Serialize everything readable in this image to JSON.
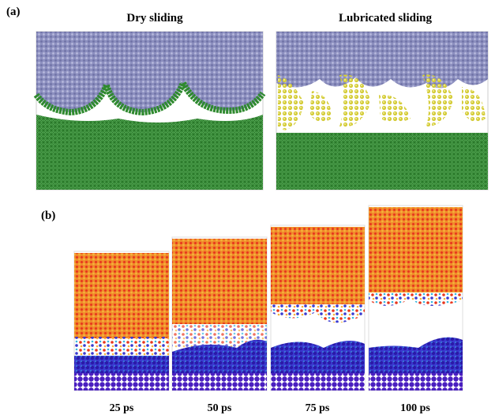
{
  "panel_a": {
    "label": "(a)",
    "titles": [
      "Dry sliding",
      "Lubricated sliding"
    ]
  },
  "panel_b": {
    "label": "(b)",
    "times": [
      "25 ps",
      "50 ps",
      "75 ps",
      "100 ps"
    ]
  }
}
